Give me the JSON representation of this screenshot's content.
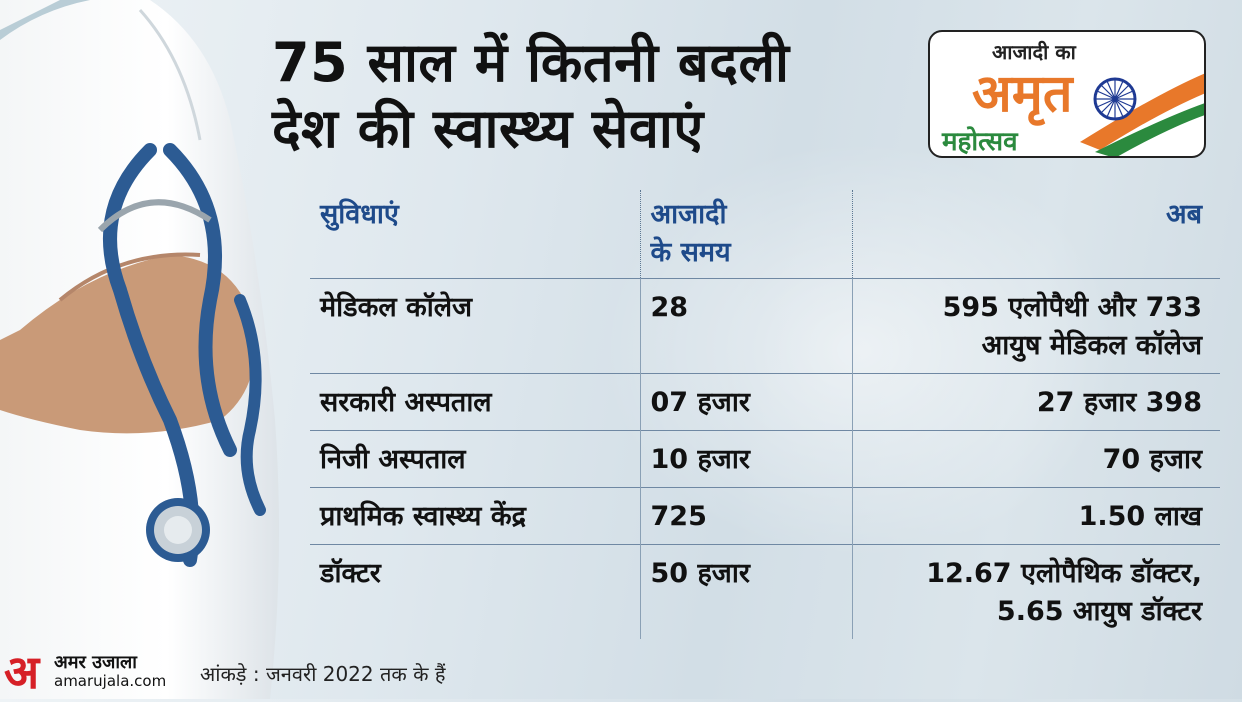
{
  "title_line1": "75 साल में कितनी बदली",
  "title_line2": "देश की स्वास्थ्य सेवाएं",
  "logo": {
    "line1": "आजादी का",
    "line2": "अमृत",
    "line3": "महोत्सव"
  },
  "table": {
    "headers": [
      "सुविधाएं",
      "आजादी\nके समय",
      "अब"
    ],
    "rows": [
      [
        "मेडिकल कॉलेज",
        "28",
        "595 एलोपैथी और 733\nआयुष मेडिकल कॉलेज"
      ],
      [
        "सरकारी अस्पताल",
        "07 हजार",
        "27 हजार 398"
      ],
      [
        "निजी अस्पताल",
        "10 हजार",
        "70 हजार"
      ],
      [
        "प्राथमिक स्वास्थ्य केंद्र",
        "725",
        "1.50 लाख"
      ],
      [
        "डॉक्टर",
        "50 हजार",
        "12.67 एलोपैथिक डॉक्टर,\n5.65 आयुष डॉक्टर"
      ]
    ]
  },
  "footer_note": "आंकड़े : जनवरी 2022 तक के हैं",
  "brand": {
    "glyph": "अ",
    "name": "अमर उजाला",
    "url": "amarujala.com"
  },
  "colors": {
    "header_text": "#1e4a8a",
    "brand_red": "#d62027",
    "saffron": "#e8782a",
    "green": "#2b8a3e",
    "chakra_blue": "#1f3a93"
  }
}
